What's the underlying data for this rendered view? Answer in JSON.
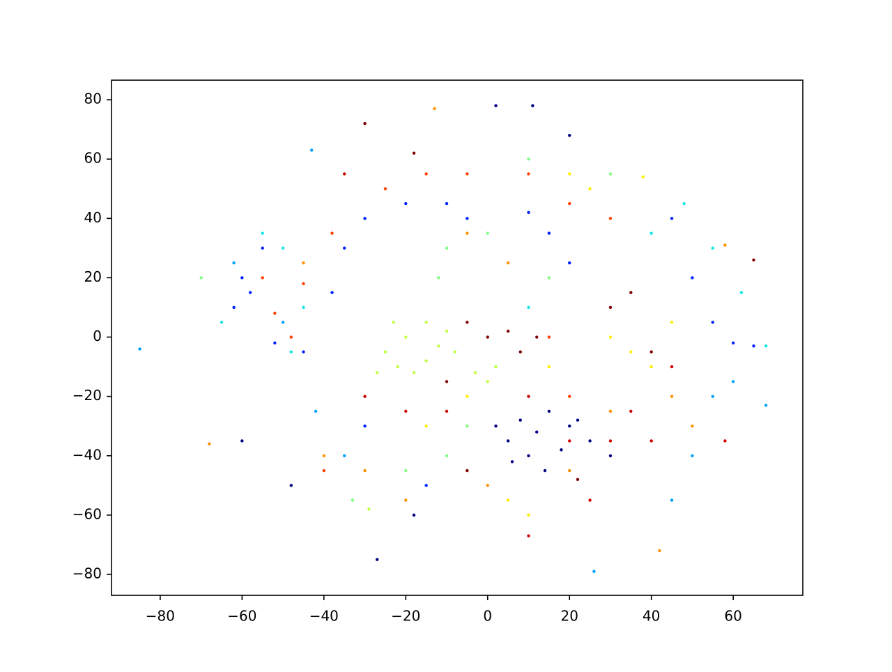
{
  "chart_data": {
    "type": "scatter",
    "xlim": [
      -91.9,
      77.0
    ],
    "ylim": [
      -87.05,
      86.6
    ],
    "xticks": [
      {
        "value": -80,
        "label": "−80"
      },
      {
        "value": -60,
        "label": "−60"
      },
      {
        "value": -40,
        "label": "−40"
      },
      {
        "value": -20,
        "label": "−20"
      },
      0,
      20,
      40,
      60
    ],
    "yticks": [
      {
        "value": -80,
        "label": "−80"
      },
      {
        "value": -60,
        "label": "−60"
      },
      {
        "value": -40,
        "label": "−40"
      },
      {
        "value": -20,
        "label": "−20"
      },
      0,
      20,
      40,
      60,
      80
    ],
    "series": [
      {
        "color": "#000080",
        "x": [
          2,
          5,
          8,
          10,
          12,
          15,
          18,
          20,
          22,
          25,
          6,
          14,
          -18,
          2,
          11,
          20,
          -27,
          -48,
          -60,
          30
        ],
        "values": [
          -30,
          -35,
          -28,
          -40,
          -32,
          -25,
          -38,
          -30,
          -28,
          -35,
          -42,
          -45,
          -60,
          78,
          78,
          68,
          -75,
          -50,
          -35,
          -40
        ]
      },
      {
        "color": "#0020ff",
        "x": [
          -60,
          -62,
          -55,
          -58,
          -52,
          -45,
          -38,
          -35,
          -30,
          -20,
          -10,
          -5,
          10,
          15,
          20,
          45,
          50,
          55,
          60,
          65,
          -30,
          -15
        ],
        "values": [
          20,
          10,
          30,
          15,
          -2,
          -5,
          15,
          30,
          40,
          45,
          45,
          40,
          42,
          35,
          25,
          40,
          20,
          5,
          -2,
          -3,
          -30,
          -50
        ]
      },
      {
        "color": "#00a0ff",
        "x": [
          -85,
          -43,
          -62,
          -50,
          -42,
          -35,
          55,
          60,
          50,
          26,
          45,
          68
        ],
        "values": [
          -4,
          63,
          25,
          5,
          -25,
          -40,
          -20,
          -15,
          -40,
          -79,
          -55,
          -23
        ]
      },
      {
        "color": "#10e8e8",
        "x": [
          -55,
          -50,
          -65,
          -48,
          -45,
          40,
          48,
          62,
          68,
          55,
          10
        ],
        "values": [
          35,
          30,
          5,
          -5,
          10,
          35,
          45,
          15,
          -3,
          30,
          10
        ]
      },
      {
        "color": "#80ff80",
        "x": [
          -70,
          -10,
          0,
          15,
          -5,
          -20,
          -10,
          10,
          -33,
          30,
          -12
        ],
        "values": [
          20,
          30,
          35,
          20,
          -30,
          -45,
          -40,
          60,
          -55,
          55,
          20
        ]
      },
      {
        "color": "#c0ff40",
        "x": [
          -25,
          -20,
          -15,
          -22,
          -18,
          -12,
          -8,
          -27,
          -15,
          -10,
          -3,
          2,
          0,
          -23,
          -29
        ],
        "values": [
          -5,
          0,
          5,
          -10,
          -12,
          -3,
          -5,
          -12,
          -8,
          2,
          -12,
          -10,
          -15,
          5,
          -58
        ]
      },
      {
        "color": "#ffee00",
        "x": [
          20,
          25,
          30,
          35,
          40,
          15,
          5,
          10,
          -5,
          -15,
          45,
          38
        ],
        "values": [
          55,
          50,
          0,
          -5,
          -10,
          -10,
          -55,
          -60,
          -20,
          -30,
          5,
          54
        ]
      },
      {
        "color": "#ff9000",
        "x": [
          -13,
          -68,
          -40,
          -30,
          -20,
          0,
          20,
          30,
          45,
          50,
          58,
          -45,
          5,
          -5,
          42
        ],
        "values": [
          77,
          -36,
          -40,
          -45,
          -55,
          -50,
          -45,
          -25,
          -20,
          -30,
          31,
          25,
          25,
          35,
          -72
        ]
      },
      {
        "color": "#ff4000",
        "x": [
          -52,
          -48,
          -45,
          -38,
          -25,
          -15,
          -5,
          10,
          20,
          30,
          -40,
          20,
          15,
          -55
        ],
        "values": [
          8,
          0,
          18,
          35,
          50,
          55,
          55,
          55,
          45,
          40,
          -45,
          -20,
          0,
          20
        ]
      },
      {
        "color": "#d00000",
        "x": [
          -30,
          -20,
          -10,
          10,
          20,
          30,
          40,
          45,
          58,
          10,
          25,
          35,
          -35
        ],
        "values": [
          -20,
          -25,
          -25,
          -20,
          -35,
          -35,
          -35,
          -10,
          -35,
          -67,
          -55,
          -25,
          55
        ]
      },
      {
        "color": "#800000",
        "x": [
          -30,
          -18,
          -5,
          0,
          5,
          8,
          12,
          -10,
          -5,
          30,
          35,
          65,
          22,
          40
        ],
        "values": [
          72,
          62,
          5,
          0,
          2,
          -5,
          0,
          -15,
          -45,
          10,
          15,
          26,
          -48,
          -5
        ]
      }
    ]
  }
}
